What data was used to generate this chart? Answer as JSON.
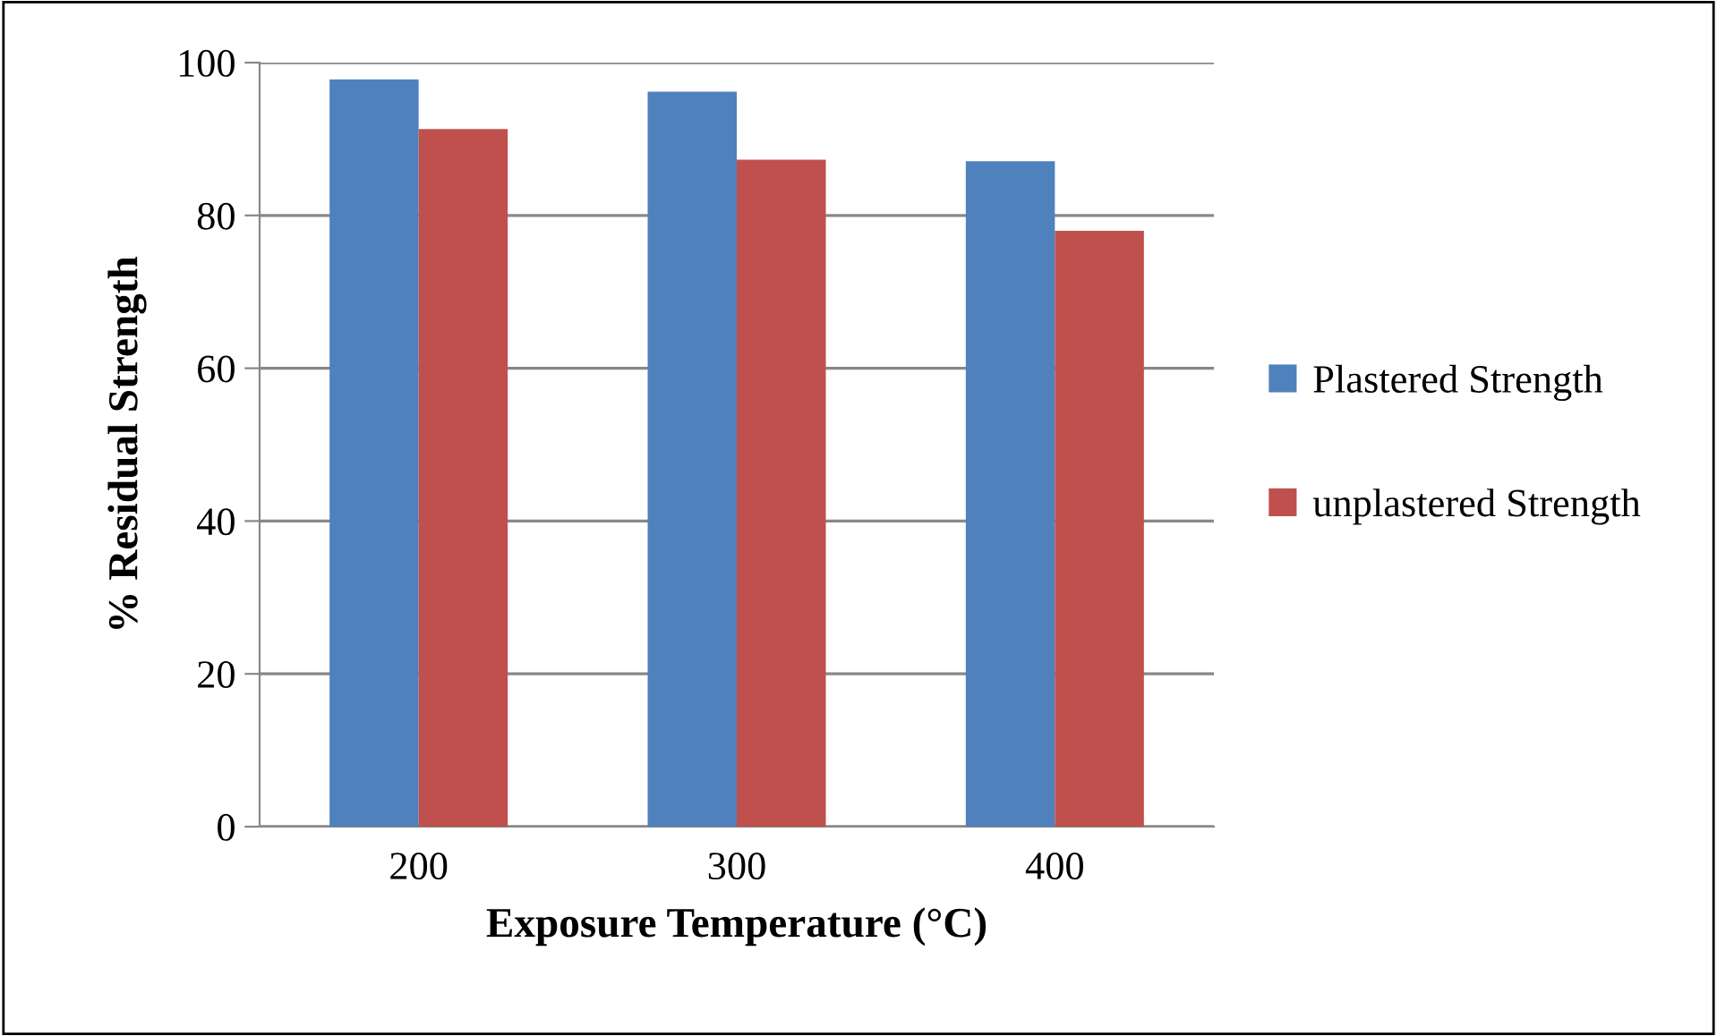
{
  "chart_data": {
    "type": "bar",
    "xlabel": "Exposure Temperature (°C)",
    "ylabel": "% Residual Strength",
    "categories": [
      "200",
      "300",
      "400"
    ],
    "series": [
      {
        "name": "Plastered Strength",
        "color": "#4f81bd",
        "values": [
          97.8,
          96.2,
          87.1
        ]
      },
      {
        "name": "unplastered Strength",
        "color": "#c0504d",
        "values": [
          91.3,
          87.3,
          78.0
        ]
      }
    ],
    "ylim": [
      0,
      100
    ],
    "yticks": [
      0,
      20,
      40,
      60,
      80,
      100
    ],
    "grid": "y",
    "legend": "right"
  }
}
